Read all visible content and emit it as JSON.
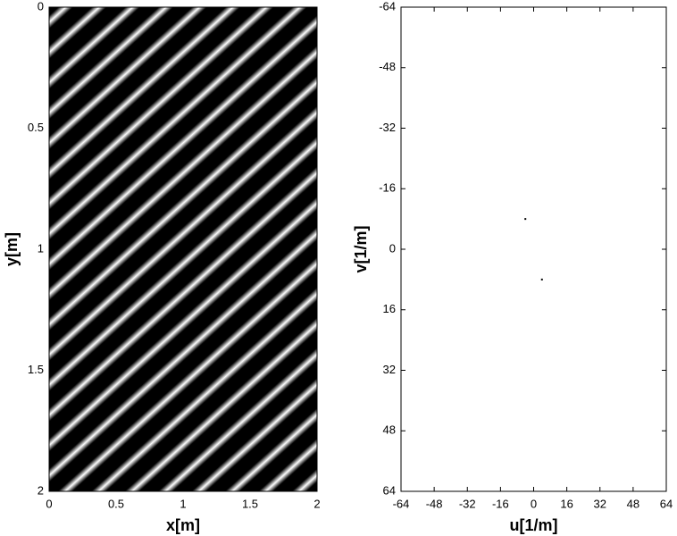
{
  "chart_data": [
    {
      "type": "image",
      "xlabel": "x[m]",
      "ylabel": "y[m]",
      "xlim": [
        0,
        2
      ],
      "ylim": [
        2,
        0
      ],
      "xticks": [
        0,
        0.5,
        1,
        1.5,
        2
      ],
      "yticks": [
        0,
        0.5,
        1,
        1.5,
        2
      ]
    },
    {
      "type": "scatter",
      "xlabel": "u[1/m]",
      "ylabel": "v[1/m]",
      "xlim": [
        -64,
        64
      ],
      "ylim": [
        64,
        -64
      ],
      "xticks": [
        -64,
        -48,
        -32,
        -16,
        0,
        16,
        32,
        48,
        64
      ],
      "yticks": [
        -64,
        -48,
        -32,
        -16,
        0,
        16,
        32,
        48,
        64
      ],
      "series": [
        {
          "color": "#000000",
          "x": [
            -4,
            4
          ],
          "values": [
            -8,
            8
          ]
        }
      ]
    }
  ]
}
